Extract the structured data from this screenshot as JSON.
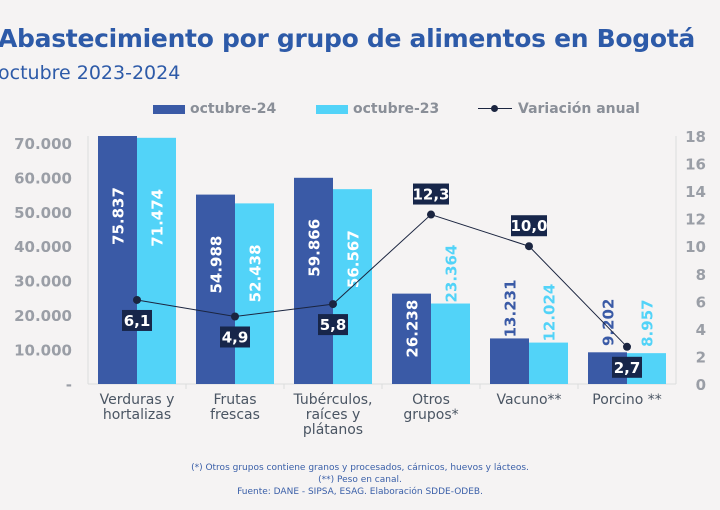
{
  "chart_data": {
    "type": "bar",
    "title": "Abastecimiento por grupo de alimentos en Bogotá",
    "subtitle": "octubre 2023-2024",
    "categories": [
      [
        "Verduras y",
        "hortalizas"
      ],
      [
        "Frutas",
        "frescas"
      ],
      [
        "Tubérculos,",
        "raíces y",
        "plátanos"
      ],
      [
        "Otros",
        "grupos*"
      ],
      [
        "Vacuno**"
      ],
      [
        "Porcino **"
      ]
    ],
    "series": [
      {
        "name": "octubre-24",
        "type": "bar",
        "axis": "left",
        "color": "#3a5aa6",
        "values": [
          75837,
          54988,
          59866,
          26238,
          13231,
          9202
        ],
        "labels": [
          "75.837",
          "54.988",
          "59.866",
          "26.238",
          "13.231",
          "9.202"
        ]
      },
      {
        "name": "octubre-23",
        "type": "bar",
        "axis": "left",
        "color": "#52d3f8",
        "values": [
          71474,
          52438,
          56567,
          23364,
          12024,
          8957
        ],
        "labels": [
          "71.474",
          "52.438",
          "56.567",
          "23.364",
          "12.024",
          "8.957"
        ]
      },
      {
        "name": "Variación anual",
        "type": "line",
        "axis": "right",
        "color": "#1b2540",
        "values": [
          6.1,
          4.9,
          5.8,
          12.3,
          10.0,
          2.7
        ],
        "labels": [
          "6,1",
          "4,9",
          "5,8",
          "12,3",
          "10,0",
          "2,7"
        ]
      }
    ],
    "left_axis": {
      "ylim": [
        0,
        72000
      ],
      "ticks": [
        0,
        10000,
        20000,
        30000,
        40000,
        50000,
        60000,
        70000
      ],
      "tick_labels": [
        "-",
        "10.000",
        "20.000",
        "30.000",
        "40.000",
        "50.000",
        "60.000",
        "70.000"
      ]
    },
    "right_axis": {
      "ylim": [
        0,
        18
      ],
      "ticks": [
        0,
        2,
        4,
        6,
        8,
        10,
        12,
        14,
        16,
        18
      ],
      "tick_labels": [
        "0",
        "2",
        "4",
        "6",
        "8",
        "10",
        "12",
        "14",
        "16",
        "18"
      ]
    },
    "legend": "top",
    "grid": false
  },
  "footer": {
    "note1": "(*) Otros grupos contiene granos y procesados, cárnicos, huevos y lácteos.",
    "note2": "(**) Peso en canal.",
    "source": "Fuente: DANE - SIPSA, ESAG. Elaboración SDDE-ODEB."
  }
}
